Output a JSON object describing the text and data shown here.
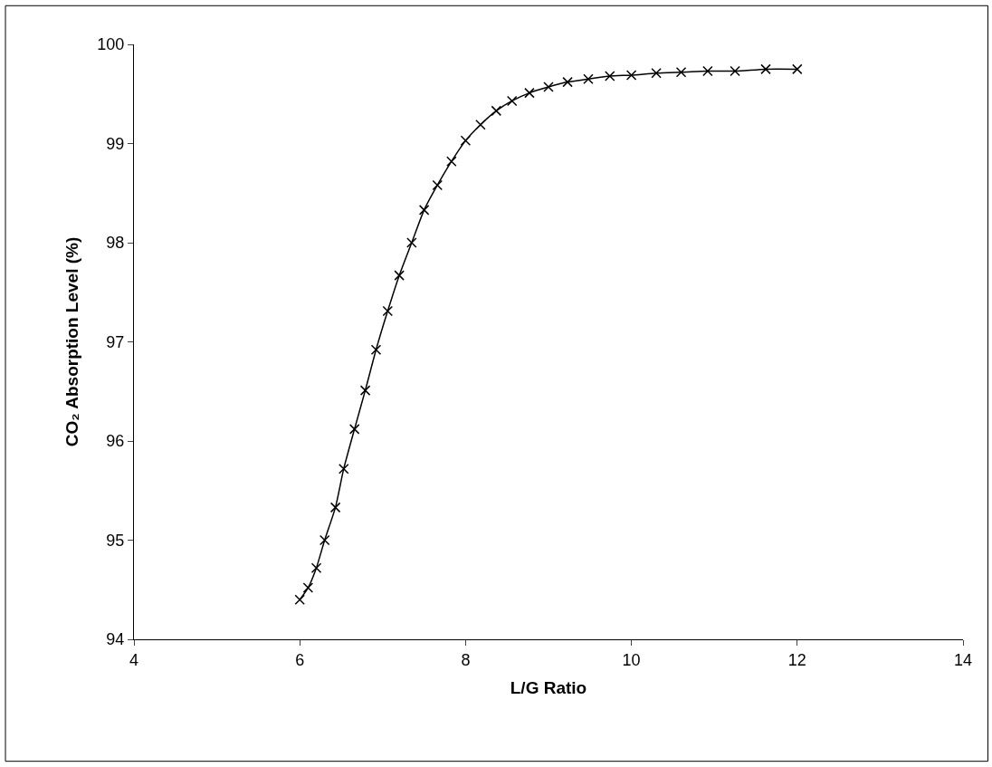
{
  "chart_data": {
    "type": "line",
    "xlabel": "L/G Ratio",
    "ylabel": "CO₂ Absorption Level (%)",
    "xlim": [
      4,
      14
    ],
    "xticks": [
      4,
      6,
      8,
      10,
      12,
      14
    ],
    "ylim": [
      94,
      100
    ],
    "yticks": [
      94,
      95,
      96,
      97,
      98,
      99,
      100
    ],
    "marker": "cross",
    "line_style": "solid",
    "series": [
      {
        "color": "#000000",
        "x": [
          6.0,
          6.1,
          6.2,
          6.3,
          6.43,
          6.53,
          6.66,
          6.79,
          6.92,
          7.06,
          7.2,
          7.35,
          7.5,
          7.66,
          7.83,
          8.0,
          8.18,
          8.37,
          8.56,
          8.77,
          9.0,
          9.23,
          9.48,
          9.74,
          10.0,
          10.3,
          10.6,
          10.92,
          11.25,
          11.62,
          12.0
        ],
        "values": [
          94.4,
          94.52,
          94.72,
          95.0,
          95.33,
          95.72,
          96.12,
          96.51,
          96.92,
          97.31,
          97.67,
          98.0,
          98.33,
          98.58,
          98.82,
          99.03,
          99.19,
          99.33,
          99.43,
          99.51,
          99.57,
          99.62,
          99.65,
          99.68,
          99.69,
          99.71,
          99.72,
          99.73,
          99.73,
          99.75,
          99.75
        ]
      }
    ]
  }
}
